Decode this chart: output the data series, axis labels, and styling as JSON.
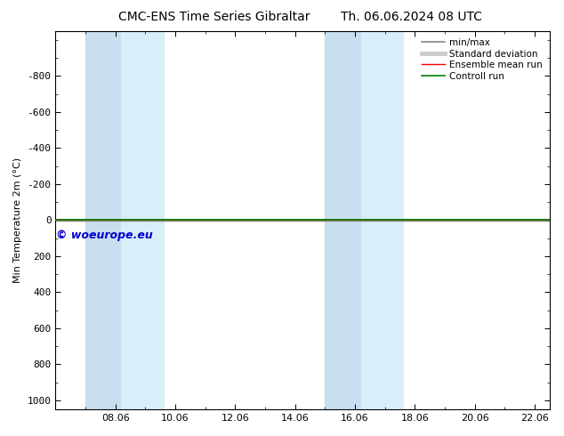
{
  "title_left": "CMC-ENS Time Series Gibraltar",
  "title_right": "Th. 06.06.2024 08 UTC",
  "ylabel": "Min Temperature 2m (°C)",
  "ylim_top": -1050,
  "ylim_bottom": 1050,
  "yticks": [
    -800,
    -600,
    -400,
    -200,
    0,
    200,
    400,
    600,
    800,
    1000
  ],
  "xtick_labels": [
    "08.06",
    "10.06",
    "12.06",
    "14.06",
    "16.06",
    "18.06",
    "20.06",
    "22.06"
  ],
  "xtick_positions": [
    2,
    4,
    6,
    8,
    10,
    12,
    14,
    16
  ],
  "xlim": [
    0,
    16.5
  ],
  "shaded_bands": [
    [
      1.0,
      2.0
    ],
    [
      2.0,
      3.5
    ],
    [
      9.0,
      10.0
    ],
    [
      10.0,
      11.5
    ]
  ],
  "band_colors": [
    "#cce0f5",
    "#d8ecfa",
    "#cce0f5",
    "#d8ecfa"
  ],
  "control_color": "#008000",
  "ensemble_color": "#ff0000",
  "minmax_color": "#888888",
  "stddev_color": "#bbbbbb",
  "bg_color": "#ffffff",
  "copyright_text": "© woeurope.eu",
  "copyright_color": "#0000cc",
  "legend_labels": [
    "min/max",
    "Standard deviation",
    "Ensemble mean run",
    "Controll run"
  ],
  "legend_colors": [
    "#888888",
    "#cccccc",
    "#ff0000",
    "#008000"
  ]
}
